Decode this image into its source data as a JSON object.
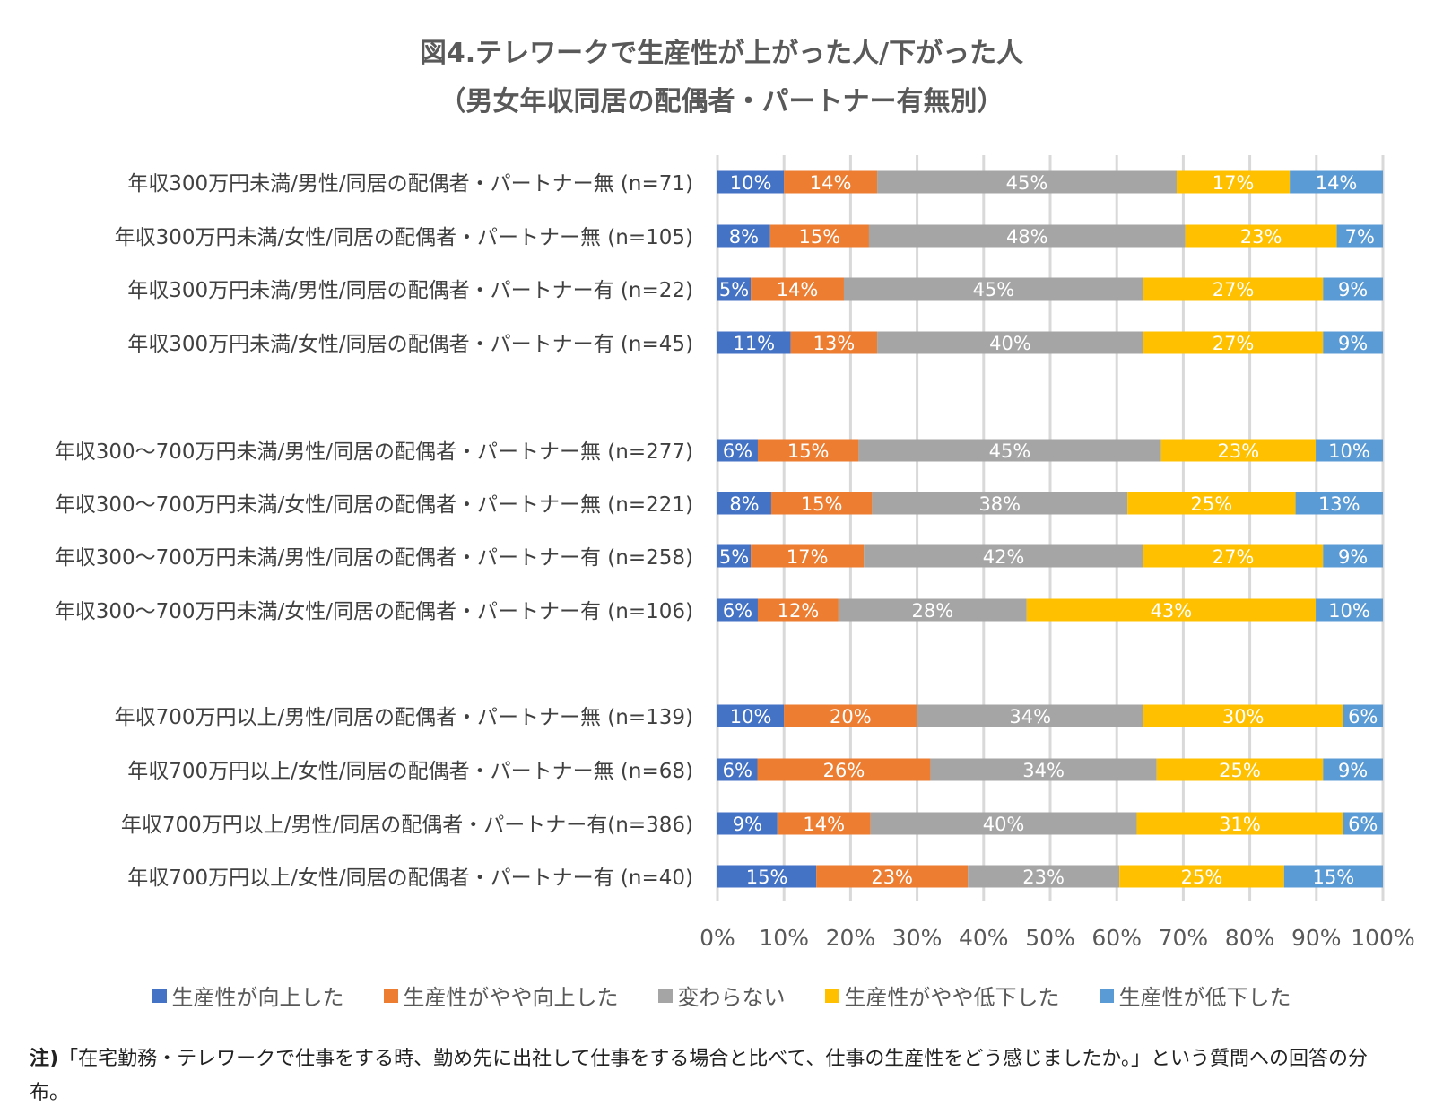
{
  "chart_data": {
    "type": "bar",
    "orientation": "horizontal",
    "stacked": "percent",
    "title": "図4.テレワークで生産性が上がった人/下がった人",
    "subtitle": "（男女年収同居の配偶者・パートナー有無別）",
    "categories": [
      "年収300万円未満/男性/同居の配偶者・パートナー無 (n=71)",
      "年収300万円未満/女性/同居の配偶者・パートナー無 (n=105)",
      "年収300万円未満/男性/同居の配偶者・パートナー有 (n=22)",
      "年収300万円未満/女性/同居の配偶者・パートナー有 (n=45)",
      "",
      "年収300～700万円未満/男性/同居の配偶者・パートナー無 (n=277)",
      "年収300～700万円未満/女性/同居の配偶者・パートナー無 (n=221)",
      "年収300～700万円未満/男性/同居の配偶者・パートナー有 (n=258)",
      "年収300～700万円未満/女性/同居の配偶者・パートナー有 (n=106)",
      "",
      "年収700万円以上/男性/同居の配偶者・パートナー無 (n=139)",
      "年収700万円以上/女性/同居の配偶者・パートナー無 (n=68)",
      "年収700万円以上/男性/同居の配偶者・パートナー有(n=386)",
      "年収700万円以上/女性/同居の配偶者・パートナー有 (n=40)"
    ],
    "series": [
      {
        "name": "生産性が向上した",
        "color": "#4472C4",
        "values": [
          10,
          8,
          5,
          11,
          null,
          6,
          8,
          5,
          6,
          null,
          10,
          6,
          9,
          15
        ]
      },
      {
        "name": "生産性がやや向上した",
        "color": "#ED7D31",
        "values": [
          14,
          15,
          14,
          13,
          null,
          15,
          15,
          17,
          12,
          null,
          20,
          26,
          14,
          23
        ]
      },
      {
        "name": "変わらない",
        "color": "#A5A5A5",
        "values": [
          45,
          48,
          45,
          40,
          null,
          45,
          38,
          42,
          28,
          null,
          34,
          34,
          40,
          23
        ]
      },
      {
        "name": "生産性がやや低下した",
        "color": "#FFC000",
        "values": [
          17,
          23,
          27,
          27,
          null,
          23,
          25,
          27,
          43,
          null,
          30,
          25,
          31,
          25
        ]
      },
      {
        "name": "生産性が低下した",
        "color": "#5B9BD5",
        "values": [
          14,
          7,
          9,
          9,
          null,
          10,
          13,
          9,
          10,
          null,
          6,
          9,
          6,
          15
        ]
      }
    ],
    "xlim": [
      0,
      100
    ],
    "xticks": [
      "0%",
      "10%",
      "20%",
      "30%",
      "40%",
      "50%",
      "60%",
      "70%",
      "80%",
      "90%",
      "100%"
    ],
    "grid": true,
    "legend": "bottom",
    "data_labels": true
  },
  "note": {
    "prefix": "注)",
    "text": "「在宅勤務・テレワークで仕事をする時、勤め先に出社して仕事をする場合と比べて、仕事の生産性をどう感じましたか。」という質問への回答の分布。"
  }
}
